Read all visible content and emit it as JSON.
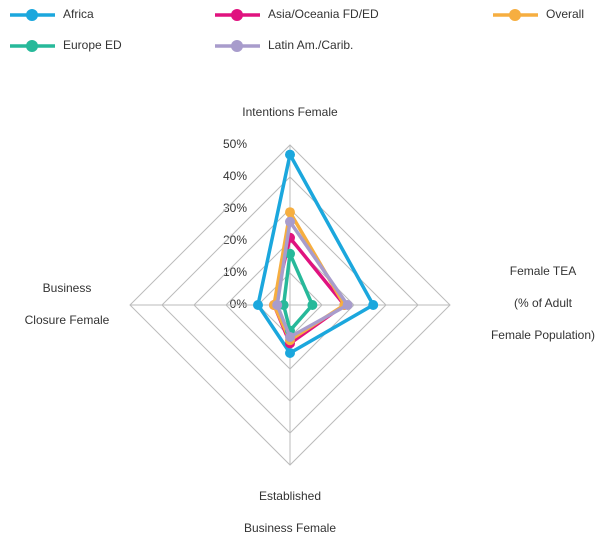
{
  "chart_data": {
    "type": "radar",
    "categories": [
      [
        "Intentions Female"
      ],
      [
        "Female TEA",
        "(% of Adult",
        "Female Population)"
      ],
      [
        "Established",
        "Business Female"
      ],
      [
        "Business",
        "Closure Female"
      ]
    ],
    "series": [
      {
        "name": "Africa",
        "color": "#1ba7dd",
        "values": [
          47,
          26,
          15,
          10
        ]
      },
      {
        "name": "Asia/Oceania FD/ED",
        "color": "#e0127f",
        "values": [
          21,
          17,
          12,
          5
        ]
      },
      {
        "name": "Overall",
        "color": "#f6ae40",
        "values": [
          29,
          17,
          11,
          5
        ]
      },
      {
        "name": "Europe ED",
        "color": "#27b99a",
        "values": [
          16,
          7,
          8,
          2
        ]
      },
      {
        "name": "Latin Am./Carib.",
        "color": "#a89ccc",
        "values": [
          26,
          18,
          10,
          4
        ]
      }
    ],
    "ylim": [
      0,
      50
    ],
    "yticks": [
      {
        "value": 0,
        "label": "0%"
      },
      {
        "value": 10,
        "label": "10%"
      },
      {
        "value": 20,
        "label": "20%"
      },
      {
        "value": 30,
        "label": "30%"
      },
      {
        "value": 40,
        "label": "40%"
      },
      {
        "value": 50,
        "label": "50%"
      }
    ],
    "grid": true
  }
}
